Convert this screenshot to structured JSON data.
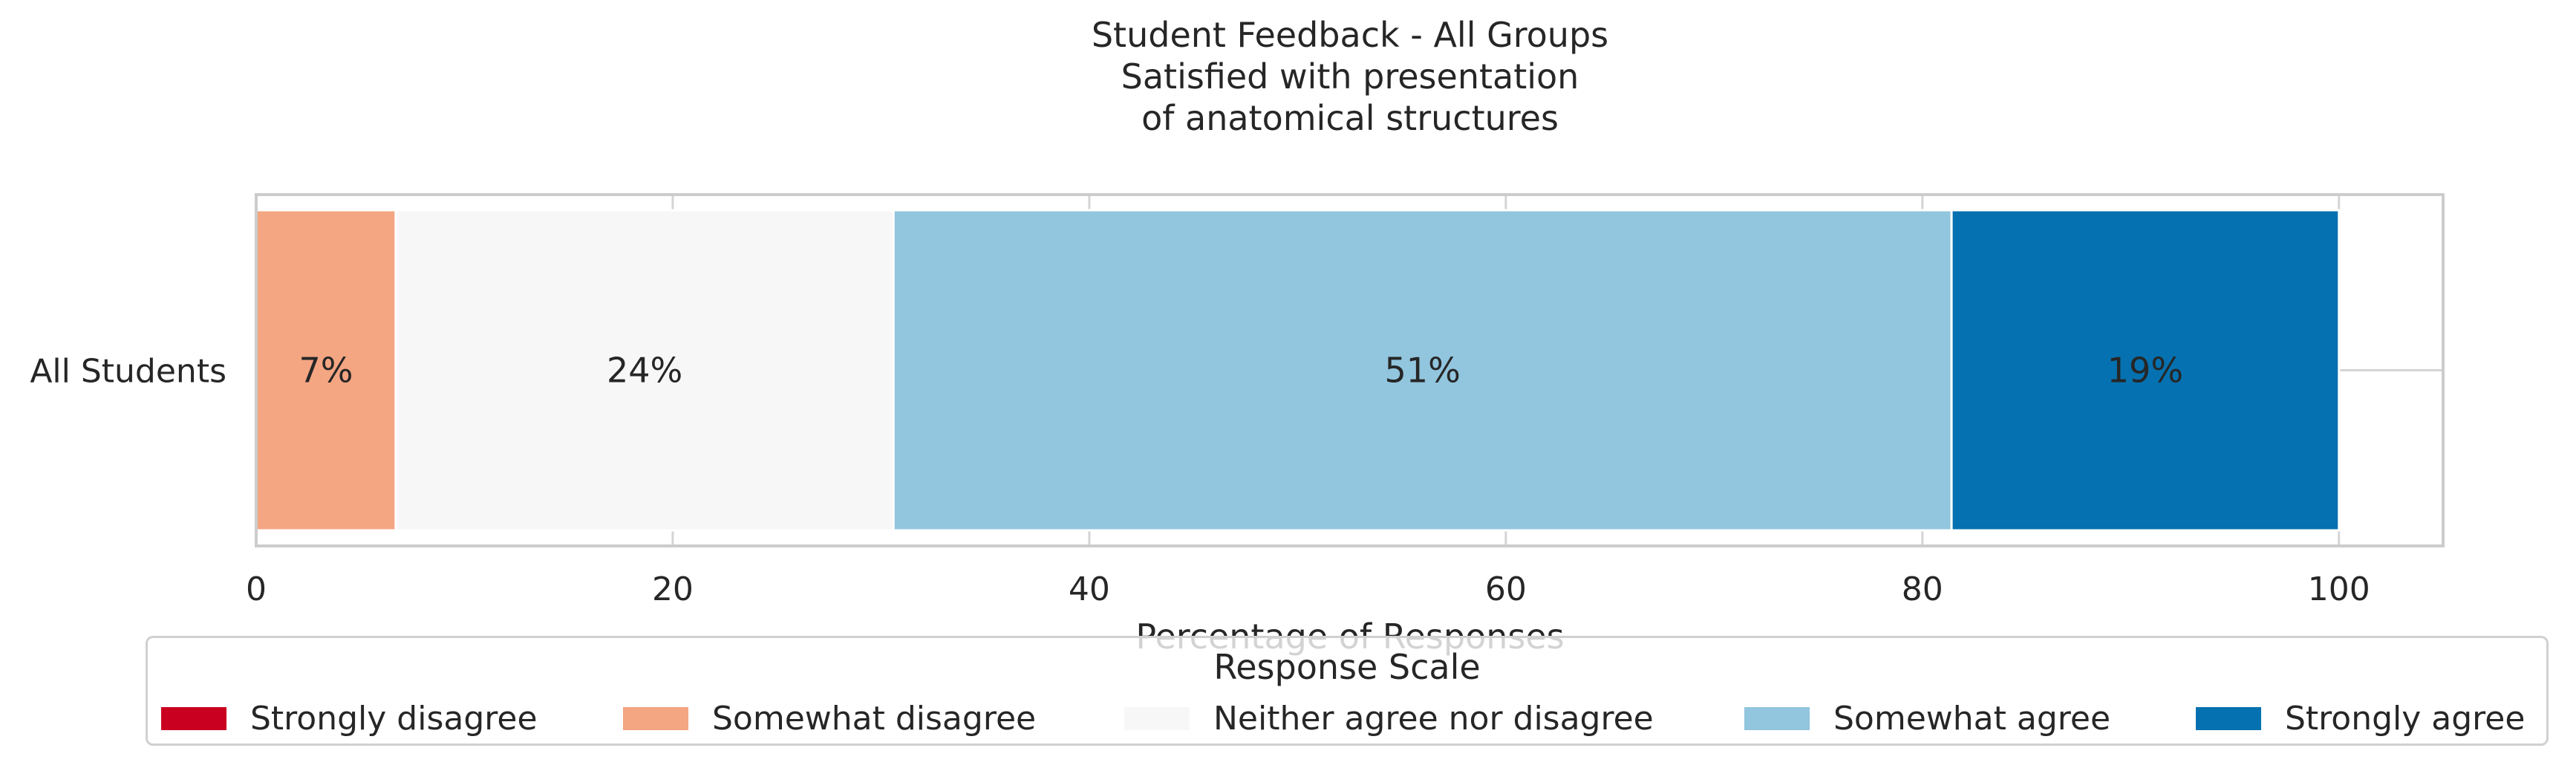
{
  "chart_data": {
    "type": "bar",
    "orientation": "horizontal",
    "stacked": true,
    "title": "Student Feedback - All Groups\nSatisfied with presentation\nof anatomical structures",
    "title_lines": [
      "Student Feedback - All Groups",
      "Satisfied with presentation",
      "of anatomical structures"
    ],
    "xlabel": "Percentage of Responses",
    "ylabel": "",
    "categories": [
      "All Students"
    ],
    "xlim": [
      0,
      105
    ],
    "xticks": [
      0,
      20,
      40,
      60,
      80,
      100
    ],
    "grid": true,
    "series": [
      {
        "name": "Strongly disagree",
        "values": [
          0
        ],
        "color": "#ca0020",
        "label": ""
      },
      {
        "name": "Somewhat disagree",
        "values": [
          6.7
        ],
        "color": "#f4a582",
        "label": "7%"
      },
      {
        "name": "Neither agree nor disagree",
        "values": [
          23.9
        ],
        "color": "#f7f7f7",
        "label": "24%"
      },
      {
        "name": "Somewhat agree",
        "values": [
          50.8
        ],
        "color": "#92c5de",
        "label": "51%"
      },
      {
        "name": "Strongly agree",
        "values": [
          18.6
        ],
        "color": "#0571b0",
        "label": "19%"
      }
    ],
    "legend": {
      "title": "Response Scale",
      "placement": "bottom-center"
    }
  }
}
